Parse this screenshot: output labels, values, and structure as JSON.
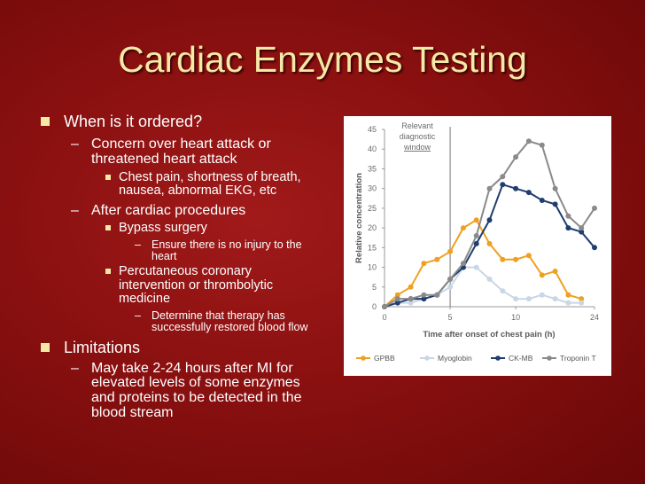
{
  "slide": {
    "title": "Cardiac Enzymes Testing",
    "bullets": {
      "b1": "When is it ordered?",
      "b1a_line1": "Concern over heart attack or",
      "b1a_line2": "threatened heart attack",
      "b1a1_line1": "Chest pain, shortness of breath,",
      "b1a1_line2": "nausea, abnormal EKG, etc",
      "b1b": "After cardiac procedures",
      "b1b1": "Bypass surgery",
      "b1b1a_line1": "Ensure there is no injury to the",
      "b1b1a_line2": "heart",
      "b1b2_line1": "Percutaneous coronary",
      "b1b2_line2": "intervention or thrombolytic",
      "b1b2_line3": "medicine",
      "b1b2a_line1": "Determine that therapy has",
      "b1b2a_line2": "successfully restored blood flow",
      "b2": "Limitations",
      "b2a_line1": "May take 2-24 hours after MI for",
      "b2a_line2": "elevated levels of some enzymes",
      "b2a_line3": "and proteins to be detected in the",
      "b2a_line4": "blood stream"
    },
    "dash_glyph": "–",
    "colors": {
      "background": "#8a1010",
      "title": "#f4e9a6",
      "text": "#ffffff"
    }
  },
  "chart_data": {
    "type": "line",
    "xlabel": "Time after onset of chest pain (h)",
    "ylabel": "Relative concentration",
    "annotation_lines": [
      "Relevant",
      "diagnostic",
      "window"
    ],
    "annotation_x": 5,
    "xlim": [
      0,
      24
    ],
    "ylim": [
      0,
      45
    ],
    "x_ticks": [
      "0",
      "5",
      "10",
      "24"
    ],
    "y_ticks": [
      "0",
      "5",
      "10",
      "15",
      "20",
      "25",
      "30",
      "35",
      "40",
      "45"
    ],
    "x_pos": [
      0,
      1,
      2,
      3,
      4,
      5,
      6,
      7,
      8,
      9,
      10,
      11,
      12,
      13,
      14,
      15,
      16
    ],
    "series": [
      {
        "name": "GPBB",
        "color": "#f0a020",
        "values": [
          0,
          3,
          5,
          11,
          12,
          14,
          20,
          22,
          16,
          12,
          12,
          13,
          8,
          9,
          3,
          2,
          null
        ]
      },
      {
        "name": "Myoglobin",
        "color": "#c8d6e6",
        "values": [
          0,
          1,
          1,
          2,
          3,
          5,
          10,
          10,
          7,
          4,
          2,
          2,
          3,
          2,
          1,
          1,
          null
        ]
      },
      {
        "name": "CK-MB",
        "color": "#1f3d6e",
        "values": [
          0,
          1,
          2,
          2,
          3,
          7,
          10,
          16,
          22,
          31,
          30,
          29,
          27,
          26,
          20,
          19,
          15
        ]
      },
      {
        "name": "Troponin T",
        "color": "#8a8a8a",
        "values": [
          0,
          2,
          2,
          3,
          3,
          7,
          11,
          18,
          30,
          33,
          38,
          42,
          41,
          30,
          23,
          20,
          25
        ]
      }
    ]
  }
}
